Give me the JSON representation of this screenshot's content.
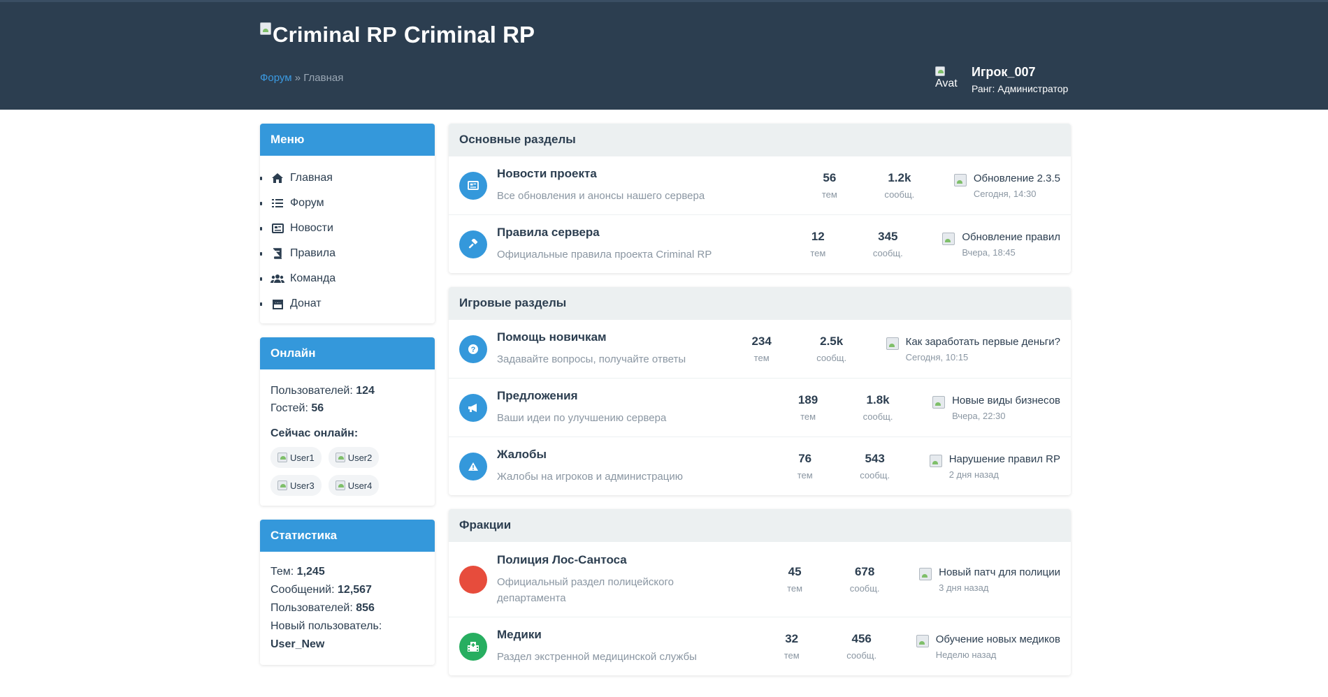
{
  "site": {
    "logo_alt": "Criminal RP",
    "title": "Criminal RP"
  },
  "breadcrumb": {
    "link": "Форум",
    "separator": "»",
    "current": "Главная"
  },
  "user": {
    "avatar_alt": "Avat",
    "name": "Игрок_007",
    "rank": "Ранг: Администратор"
  },
  "sidebar": {
    "menu": {
      "title": "Меню",
      "items": [
        {
          "label": "Главная",
          "icon": "home-icon"
        },
        {
          "label": "Форум",
          "icon": "list-icon"
        },
        {
          "label": "Новости",
          "icon": "newspaper-icon"
        },
        {
          "label": "Правила",
          "icon": "book-icon"
        },
        {
          "label": "Команда",
          "icon": "users-icon"
        },
        {
          "label": "Донат",
          "icon": "store-icon"
        }
      ]
    },
    "online": {
      "title": "Онлайн",
      "users_label": "Пользователей:",
      "users_value": "124",
      "guests_label": "Гостей:",
      "guests_value": "56",
      "now_title": "Сейчас онлайн:",
      "now_users": [
        "User1",
        "User2",
        "User3",
        "User4"
      ]
    },
    "stats": {
      "title": "Статистика",
      "topics_label": "Тем:",
      "topics_value": "1,245",
      "messages_label": "Сообщений:",
      "messages_value": "12,567",
      "users_label": "Пользователей:",
      "users_value": "856",
      "newest_label": "Новый пользователь:",
      "newest_value": "User_New"
    }
  },
  "sections": [
    {
      "title": "Основные разделы",
      "forums": [
        {
          "icon": "newspaper-icon",
          "color": "#3498db",
          "title": "Новости проекта",
          "desc": "Все обновления и анонсы нашего сервера",
          "topics": "56",
          "topics_label": "тем",
          "posts": "1.2k",
          "posts_label": "сообщ.",
          "last_title": "Обновление 2.3.5",
          "last_time": "Сегодня, 14:30"
        },
        {
          "icon": "gavel-icon",
          "color": "#3498db",
          "title": "Правила сервера",
          "desc": "Официальные правила проекта Criminal RP",
          "topics": "12",
          "topics_label": "тем",
          "posts": "345",
          "posts_label": "сообщ.",
          "last_title": "Обновление правил",
          "last_time": "Вчера, 18:45"
        }
      ]
    },
    {
      "title": "Игровые разделы",
      "forums": [
        {
          "icon": "question-icon",
          "color": "#3498db",
          "title": "Помощь новичкам",
          "desc": "Задавайте вопросы, получайте ответы",
          "topics": "234",
          "topics_label": "тем",
          "posts": "2.5k",
          "posts_label": "сообщ.",
          "last_title": "Как заработать первые деньги?",
          "last_time": "Сегодня, 10:15"
        },
        {
          "icon": "megaphone-icon",
          "color": "#3498db",
          "title": "Предложения",
          "desc": "Ваши идеи по улучшению сервера",
          "topics": "189",
          "topics_label": "тем",
          "posts": "1.8k",
          "posts_label": "сообщ.",
          "last_title": "Новые виды бизнесов",
          "last_time": "Вчера, 22:30"
        },
        {
          "icon": "warning-icon",
          "color": "#3498db",
          "title": "Жалобы",
          "desc": "Жалобы на игроков и администрацию",
          "topics": "76",
          "topics_label": "тем",
          "posts": "543",
          "posts_label": "сообщ.",
          "last_title": "Нарушение правил RP",
          "last_time": "2 дня назад"
        }
      ]
    },
    {
      "title": "Фракции",
      "forums": [
        {
          "icon": "police-icon",
          "color": "#e74c3c",
          "title": "Полиция Лос-Сантоса",
          "desc": "Официальный раздел полицейского департамента",
          "topics": "45",
          "topics_label": "тем",
          "posts": "678",
          "posts_label": "сообщ.",
          "last_title": "Новый патч для полиции",
          "last_time": "3 дня назад"
        },
        {
          "icon": "hospital-icon",
          "color": "#27ae60",
          "title": "Медики",
          "desc": "Раздел экстренной медицинской службы",
          "topics": "32",
          "topics_label": "тем",
          "posts": "456",
          "posts_label": "сообщ.",
          "last_title": "Обучение новых медиков",
          "last_time": "Неделю назад"
        }
      ]
    }
  ]
}
